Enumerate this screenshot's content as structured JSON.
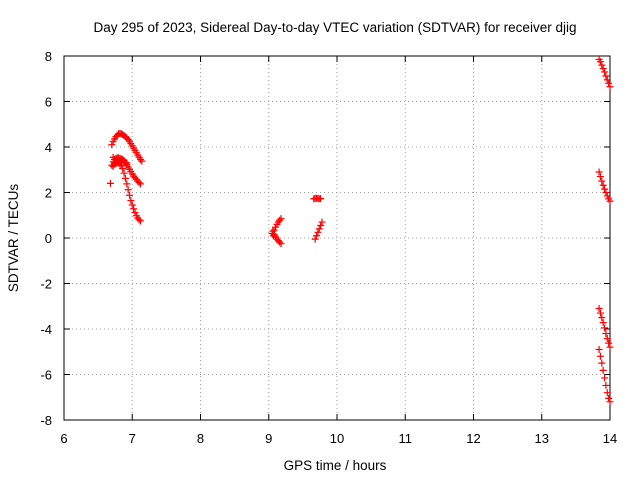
{
  "chart_data": {
    "type": "scatter",
    "title": "Day 295 of 2023, Sidereal Day-to-day VTEC variation (SDTVAR) for receiver djig",
    "xlabel": "GPS time / hours",
    "ylabel": "SDTVAR / TECUs",
    "xlim": [
      6,
      14
    ],
    "ylim": [
      -8,
      8
    ],
    "xticks": [
      "6",
      "7",
      "8",
      "9",
      "10",
      "11",
      "12",
      "13",
      "14"
    ],
    "yticks": [
      "-8",
      "-6",
      "-4",
      "-2",
      "0",
      "2",
      "4",
      "6",
      "8"
    ],
    "grid": true,
    "marker": "plus",
    "marker_color": "#ff0000",
    "series": [
      {
        "values": [
          [
            6.68,
            2.4
          ],
          [
            6.7,
            4.1
          ],
          [
            6.72,
            4.25
          ],
          [
            6.74,
            4.35
          ],
          [
            6.76,
            4.45
          ],
          [
            6.78,
            4.52
          ],
          [
            6.8,
            4.58
          ],
          [
            6.82,
            4.6
          ],
          [
            6.84,
            4.58
          ],
          [
            6.86,
            4.55
          ],
          [
            6.88,
            4.5
          ],
          [
            6.9,
            4.45
          ],
          [
            6.92,
            4.4
          ],
          [
            6.94,
            4.33
          ],
          [
            6.96,
            4.25
          ],
          [
            6.98,
            4.15
          ],
          [
            7.0,
            4.05
          ],
          [
            7.02,
            3.95
          ],
          [
            7.04,
            3.85
          ],
          [
            7.06,
            3.75
          ],
          [
            7.08,
            3.65
          ],
          [
            7.1,
            3.55
          ],
          [
            7.12,
            3.45
          ],
          [
            7.14,
            3.38
          ],
          [
            6.7,
            3.2
          ],
          [
            6.72,
            3.35
          ],
          [
            6.74,
            3.45
          ],
          [
            6.76,
            3.5
          ],
          [
            6.78,
            3.52
          ],
          [
            6.8,
            3.52
          ],
          [
            6.82,
            3.5
          ],
          [
            6.84,
            3.48
          ],
          [
            6.86,
            3.45
          ],
          [
            6.88,
            3.4
          ],
          [
            6.9,
            3.32
          ],
          [
            6.92,
            3.22
          ],
          [
            6.94,
            3.12
          ],
          [
            6.96,
            3.02
          ],
          [
            6.98,
            2.92
          ],
          [
            7.0,
            2.82
          ],
          [
            7.02,
            2.72
          ],
          [
            7.04,
            2.65
          ],
          [
            7.06,
            2.58
          ],
          [
            7.08,
            2.5
          ],
          [
            7.1,
            2.44
          ],
          [
            7.12,
            2.38
          ],
          [
            6.72,
            3.15
          ],
          [
            6.74,
            3.25
          ],
          [
            6.76,
            3.3
          ],
          [
            6.78,
            3.32
          ],
          [
            6.8,
            3.3
          ],
          [
            6.82,
            3.25
          ],
          [
            6.84,
            3.18
          ],
          [
            6.86,
            3.05
          ],
          [
            6.88,
            2.85
          ],
          [
            6.9,
            2.62
          ],
          [
            6.92,
            2.38
          ],
          [
            6.94,
            2.12
          ],
          [
            6.96,
            1.88
          ],
          [
            6.98,
            1.65
          ],
          [
            7.0,
            1.45
          ],
          [
            7.02,
            1.28
          ],
          [
            7.04,
            1.12
          ],
          [
            7.06,
            0.98
          ],
          [
            7.08,
            0.88
          ],
          [
            7.1,
            0.8
          ],
          [
            7.12,
            0.75
          ],
          [
            6.72,
            3.55
          ],
          [
            6.76,
            3.45
          ],
          [
            6.8,
            3.4
          ],
          [
            6.84,
            3.42
          ],
          [
            6.88,
            3.38
          ],
          [
            6.92,
            3.3
          ],
          [
            9.06,
            0.3
          ],
          [
            9.08,
            0.15
          ],
          [
            9.1,
            0.05
          ],
          [
            9.12,
            -0.05
          ],
          [
            9.14,
            -0.12
          ],
          [
            9.16,
            -0.18
          ],
          [
            9.18,
            -0.25
          ],
          [
            9.08,
            0.35
          ],
          [
            9.1,
            0.48
          ],
          [
            9.12,
            0.6
          ],
          [
            9.14,
            0.7
          ],
          [
            9.16,
            0.78
          ],
          [
            9.18,
            0.85
          ],
          [
            9.05,
            0.2
          ],
          [
            9.07,
            0.1
          ],
          [
            9.66,
            1.72
          ],
          [
            9.68,
            1.74
          ],
          [
            9.7,
            1.75
          ],
          [
            9.72,
            1.74
          ],
          [
            9.74,
            1.72
          ],
          [
            9.76,
            1.73
          ],
          [
            9.68,
            -0.05
          ],
          [
            9.7,
            0.1
          ],
          [
            9.72,
            0.25
          ],
          [
            9.74,
            0.4
          ],
          [
            9.76,
            0.55
          ],
          [
            9.78,
            0.7
          ],
          [
            13.84,
            7.85
          ],
          [
            13.86,
            7.75
          ],
          [
            13.88,
            7.6
          ],
          [
            13.9,
            7.45
          ],
          [
            13.92,
            7.3
          ],
          [
            13.94,
            7.12
          ],
          [
            13.96,
            6.95
          ],
          [
            13.98,
            6.8
          ],
          [
            14.0,
            6.65
          ],
          [
            13.84,
            2.9
          ],
          [
            13.86,
            2.7
          ],
          [
            13.88,
            2.5
          ],
          [
            13.9,
            2.32
          ],
          [
            13.92,
            2.15
          ],
          [
            13.94,
            2.0
          ],
          [
            13.96,
            1.85
          ],
          [
            13.98,
            1.72
          ],
          [
            14.0,
            1.62
          ],
          [
            13.84,
            -3.1
          ],
          [
            13.86,
            -3.3
          ],
          [
            13.88,
            -3.5
          ],
          [
            13.9,
            -3.72
          ],
          [
            13.92,
            -3.95
          ],
          [
            13.94,
            -4.2
          ],
          [
            13.96,
            -4.42
          ],
          [
            13.98,
            -4.62
          ],
          [
            14.0,
            -4.8
          ],
          [
            13.84,
            -4.9
          ],
          [
            13.86,
            -5.2
          ],
          [
            13.88,
            -5.5
          ],
          [
            13.9,
            -5.82
          ],
          [
            13.92,
            -6.15
          ],
          [
            13.94,
            -6.48
          ],
          [
            13.96,
            -6.8
          ],
          [
            13.98,
            -7.05
          ],
          [
            14.0,
            -7.2
          ]
        ]
      }
    ]
  }
}
